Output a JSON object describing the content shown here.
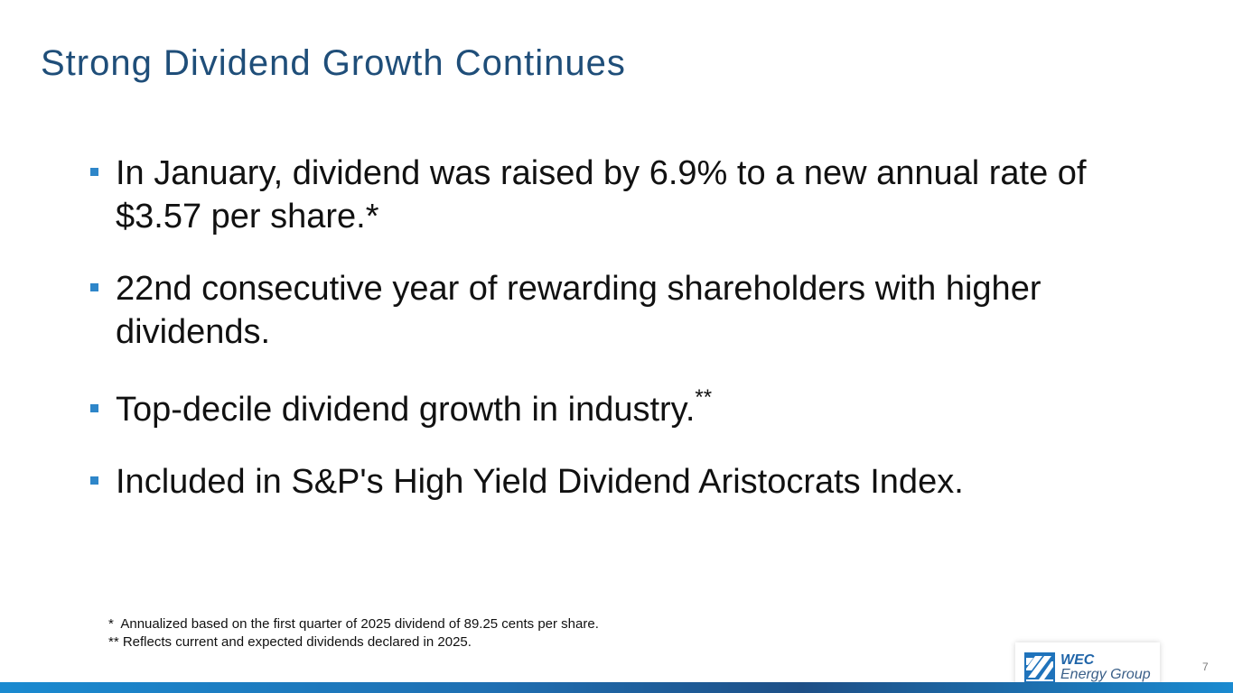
{
  "slide": {
    "title": "Strong Dividend Growth Continues",
    "bullets": [
      {
        "text": "In January, dividend was raised by 6.9% to a new annual rate of $3.57 per share.*",
        "sup": ""
      },
      {
        "text": "22nd consecutive year of rewarding shareholders with higher dividends.",
        "sup": ""
      },
      {
        "text": "Top-decile dividend growth in industry.",
        "sup": "**"
      },
      {
        "text": "Included in S&P's High Yield Dividend Aristocrats Index.",
        "sup": ""
      }
    ],
    "footnotes": [
      "*  Annualized based on the first quarter of 2025 dividend of 89.25 cents per share.",
      "** Reflects current and expected dividends declared in 2025."
    ],
    "page_number": "7"
  },
  "logo": {
    "line1": "WEC",
    "line2": "Energy Group"
  },
  "colors": {
    "title": "#1f4e79",
    "bullet_marker": "#2e86c9",
    "bar": "#1a8ad0"
  }
}
